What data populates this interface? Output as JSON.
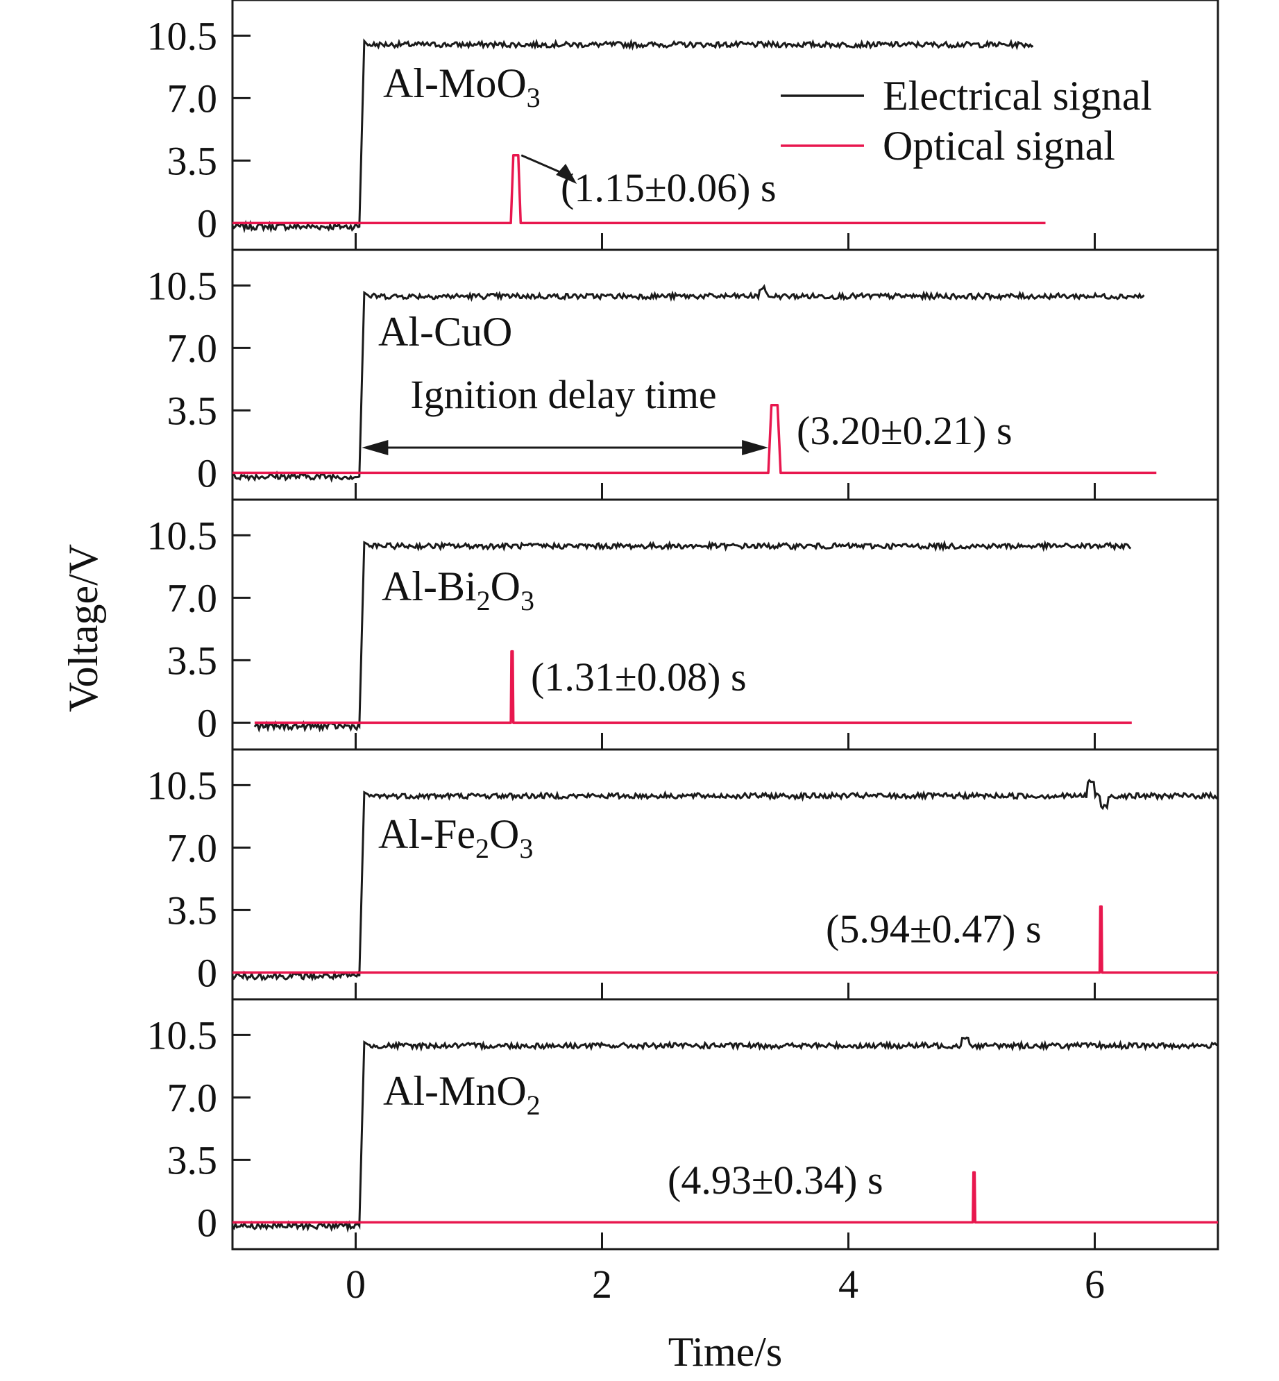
{
  "chart_data": {
    "type": "line",
    "xlabel": "Time/s",
    "ylabel": "Voltage/V",
    "xlim": [
      -1,
      7
    ],
    "ylim": [
      -1.5,
      12.5
    ],
    "xticks": [
      "0",
      "2",
      "4",
      "6"
    ],
    "xtick_values": [
      0,
      2,
      4,
      6
    ],
    "yticks": [
      "0",
      "3.5",
      "7.0",
      "10.5"
    ],
    "ytick_values": [
      0,
      3.5,
      7.0,
      10.5
    ],
    "grid": false,
    "legend": {
      "position": "top-right",
      "entries": [
        {
          "name": "Electrical signal",
          "color": "#1a1a1a"
        },
        {
          "name": "Optical signal",
          "color": "#e8174e"
        }
      ]
    },
    "panels": [
      {
        "label_main": "Al-MoO",
        "label_sub": "3",
        "ignition_label": "(1.15±0.06) s",
        "electrical": {
          "start": -1.0,
          "end": 5.5,
          "low": -0.2,
          "rise_t": 0.05,
          "high": 10.0
        },
        "optical": {
          "start": -1.0,
          "end": 5.6,
          "baseline": 0.0,
          "peak_t": 1.3,
          "peak_v": 3.8,
          "peak_width": 0.08
        },
        "disturbances": []
      },
      {
        "label_main": "Al-CuO",
        "label_sub": "",
        "ignition_label": "(3.20±0.21) s",
        "ignition_delay_label": "Ignition delay time",
        "electrical": {
          "start": -1.0,
          "end": 6.4,
          "low": -0.2,
          "rise_t": 0.05,
          "high": 9.9
        },
        "optical": {
          "start": -1.0,
          "end": 6.5,
          "baseline": 0.0,
          "peak_t": 3.4,
          "peak_v": 3.8,
          "peak_width": 0.1
        },
        "disturbances": [
          {
            "t": 3.3,
            "v": 0.4
          }
        ]
      },
      {
        "label_main": "Al-Bi",
        "label_sub": "2",
        "label_main2": "O",
        "label_sub2": "3",
        "ignition_label": "(1.31±0.08) s",
        "electrical": {
          "start": -0.82,
          "end": 6.3,
          "low": -0.2,
          "rise_t": 0.05,
          "high": 9.9
        },
        "optical": {
          "start": -0.82,
          "end": 6.3,
          "baseline": 0.0,
          "peak_t": 1.27,
          "peak_v": 4.0,
          "peak_width": 0.02
        },
        "disturbances": []
      },
      {
        "label_main": "Al-Fe",
        "label_sub": "2",
        "label_main2": "O",
        "label_sub2": "3",
        "ignition_label": "(5.94±0.47) s",
        "electrical": {
          "start": -1.0,
          "end": 7.0,
          "low": -0.2,
          "rise_t": 0.05,
          "high": 9.9
        },
        "optical": {
          "start": -1.0,
          "end": 7.0,
          "baseline": 0.0,
          "peak_t": 6.05,
          "peak_v": 3.7,
          "peak_width": 0.02
        },
        "disturbances": [
          {
            "t": 5.97,
            "v": 0.8
          },
          {
            "t": 6.08,
            "v": -0.6
          }
        ]
      },
      {
        "label_main": "Al-MnO",
        "label_sub": "2",
        "ignition_label": "(4.93±0.34) s",
        "electrical": {
          "start": -1.0,
          "end": 7.0,
          "low": -0.2,
          "rise_t": 0.05,
          "high": 9.9
        },
        "optical": {
          "start": -1.0,
          "end": 7.0,
          "baseline": 0.0,
          "peak_t": 5.02,
          "peak_v": 2.8,
          "peak_width": 0.02
        },
        "disturbances": [
          {
            "t": 4.95,
            "v": 0.5
          }
        ]
      }
    ]
  }
}
